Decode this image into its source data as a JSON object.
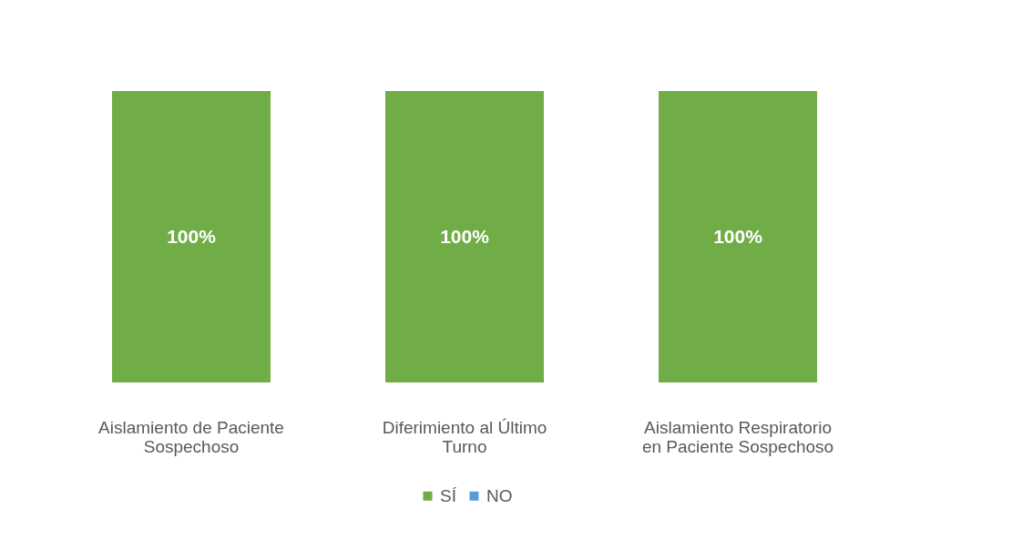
{
  "chart_data": {
    "type": "bar",
    "categories": [
      "Aislamiento de Paciente Sospechoso",
      "Diferimiento al Último Turno",
      "Aislamiento Respiratorio en Paciente Sospechoso"
    ],
    "series": [
      {
        "name": "SÍ",
        "color": "#70ad47",
        "values": [
          100,
          100,
          100
        ],
        "value_labels": [
          "100%",
          "100%",
          "100%"
        ]
      },
      {
        "name": "NO",
        "color": "#5b9bd5",
        "values": [
          0,
          0,
          0
        ],
        "value_labels": [
          null,
          null,
          null
        ]
      }
    ],
    "ylim": [
      0,
      100
    ],
    "tick_labels": "x",
    "legend": "bottom"
  }
}
